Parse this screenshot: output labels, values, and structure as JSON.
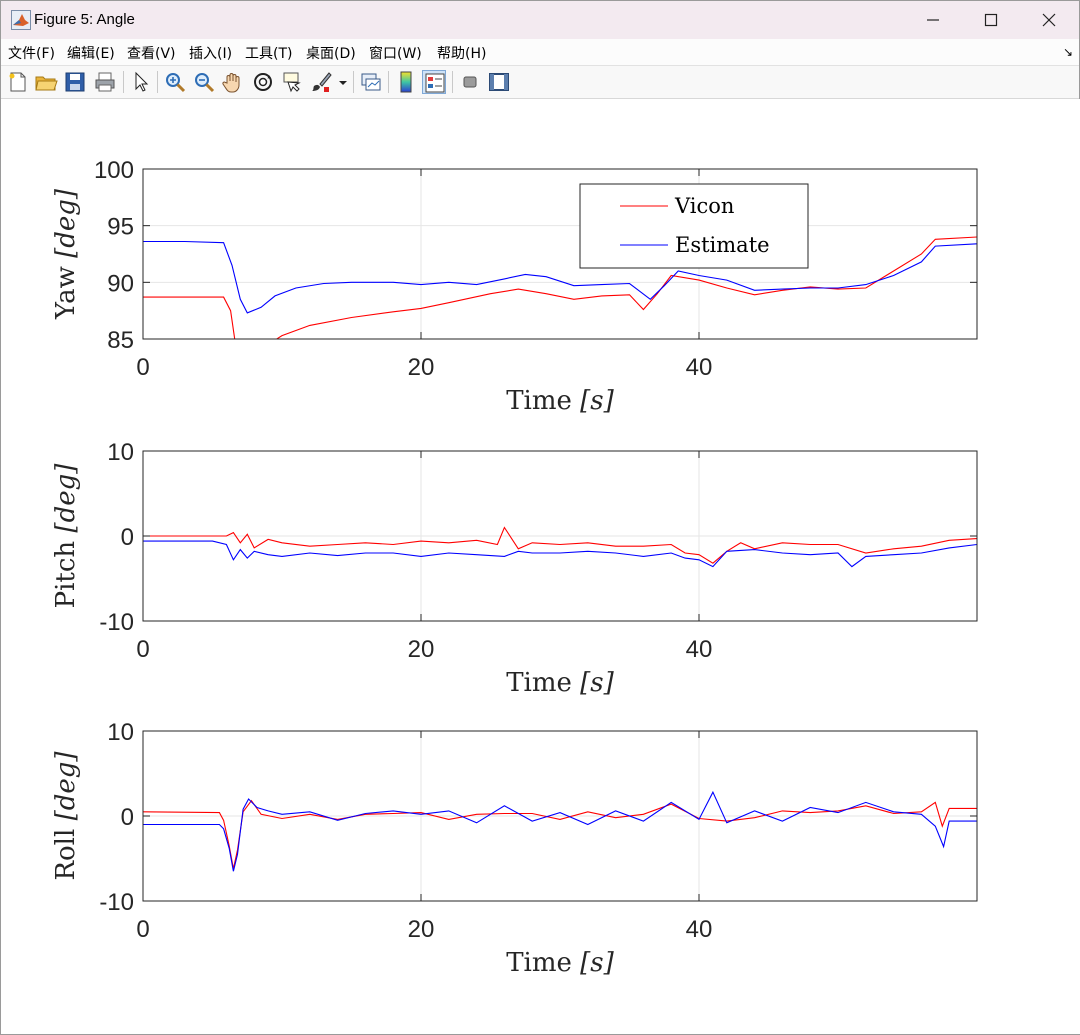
{
  "window": {
    "title": "Figure 5: Angle",
    "controls": {
      "minimize_icon": "minimize-icon",
      "maximize_icon": "maximize-icon",
      "close_icon": "close-icon"
    }
  },
  "menu": {
    "items": [
      "文件(F)",
      "编辑(E)",
      "查看(V)",
      "插入(I)",
      "工具(T)",
      "桌面(D)",
      "窗口(W)",
      "帮助(H)"
    ],
    "overflow_icon": "dock-arrow-icon"
  },
  "toolbar": {
    "icons": [
      "new-figure-icon",
      "open-file-icon",
      "save-icon",
      "print-icon",
      "pointer-icon",
      "zoom-in-icon",
      "zoom-out-icon",
      "pan-hand-icon",
      "rotate-3d-icon",
      "data-cursor-icon",
      "brush-icon",
      "link-plot-icon",
      "colorbar-icon",
      "legend-icon",
      "hide-plot-tools-icon",
      "show-plot-tools-icon"
    ]
  },
  "chart_data": [
    {
      "type": "line",
      "ylabel_text": "Yaw ",
      "ylabel_unit": "[deg]",
      "xlabel_text": "Time ",
      "xlabel_unit": "[s]",
      "xlim": [
        0,
        60
      ],
      "ylim": [
        85,
        100
      ],
      "xticks": [
        "0",
        "20",
        "40"
      ],
      "yticks": [
        "85",
        "90",
        "95",
        "100"
      ],
      "grid": true,
      "legend": {
        "placement": "top-right",
        "entries": [
          "Vicon",
          "Estimate"
        ]
      },
      "series": [
        {
          "name": "Vicon",
          "color": "#ff0000",
          "x": [
            0,
            5.8,
            6.3,
            6.6,
            7.5,
            8.5,
            9.5,
            10,
            12,
            15,
            18,
            20,
            22,
            25,
            27,
            29,
            31,
            33,
            35,
            36,
            37,
            38,
            40,
            42,
            44,
            46,
            48,
            50,
            52,
            54,
            56,
            57,
            60
          ],
          "y": [
            88.7,
            88.7,
            87.5,
            85,
            84.9,
            84.9,
            84.9,
            85.3,
            86.2,
            86.9,
            87.4,
            87.7,
            88.2,
            89.0,
            89.4,
            89.0,
            88.5,
            88.8,
            88.9,
            87.6,
            89.0,
            90.6,
            90.2,
            89.5,
            88.9,
            89.3,
            89.6,
            89.4,
            89.5,
            91.0,
            92.5,
            93.8,
            94.0
          ]
        },
        {
          "name": "Estimate",
          "color": "#0000ff",
          "x": [
            0,
            3,
            5.8,
            6.4,
            7,
            7.5,
            8.5,
            9.5,
            11,
            13,
            15,
            18,
            20,
            22,
            24,
            26,
            27.5,
            29,
            31,
            33,
            35,
            36.5,
            37.5,
            38.5,
            40,
            42,
            44,
            46,
            48,
            50,
            52,
            54,
            56,
            57,
            60
          ],
          "y": [
            93.6,
            93.6,
            93.5,
            91.5,
            88.5,
            87.3,
            87.8,
            88.8,
            89.5,
            89.9,
            90.0,
            90.0,
            89.8,
            90.0,
            89.8,
            90.3,
            90.7,
            90.5,
            89.7,
            89.8,
            89.9,
            88.5,
            89.7,
            91.0,
            90.6,
            90.2,
            89.3,
            89.4,
            89.5,
            89.5,
            89.8,
            90.6,
            91.8,
            93.2,
            93.4
          ]
        }
      ]
    },
    {
      "type": "line",
      "ylabel_text": "Pitch ",
      "ylabel_unit": "[deg]",
      "xlabel_text": "Time ",
      "xlabel_unit": "[s]",
      "xlim": [
        0,
        60
      ],
      "ylim": [
        -10,
        10
      ],
      "xticks": [
        "0",
        "20",
        "40"
      ],
      "yticks": [
        "-10",
        "0",
        "10"
      ],
      "grid": true,
      "series": [
        {
          "name": "Vicon",
          "color": "#ff0000",
          "x": [
            0,
            6,
            6.5,
            7,
            7.5,
            8,
            9,
            10,
            12,
            14,
            16,
            18,
            20,
            22,
            24,
            25.5,
            26,
            27,
            28,
            30,
            32,
            34,
            36,
            38,
            39,
            40,
            41,
            42,
            43,
            44,
            46,
            48,
            50,
            52,
            54,
            56,
            58,
            60
          ],
          "y": [
            0,
            0,
            0.4,
            -0.8,
            0.2,
            -1.4,
            -0.4,
            -0.8,
            -1.2,
            -1.0,
            -0.8,
            -1.0,
            -0.6,
            -0.8,
            -0.5,
            -1.0,
            1.0,
            -1.5,
            -0.8,
            -1.0,
            -0.8,
            -1.2,
            -1.2,
            -1.0,
            -2.0,
            -2.2,
            -3.2,
            -1.8,
            -0.8,
            -1.5,
            -0.8,
            -1.0,
            -1.0,
            -2.0,
            -1.5,
            -1.2,
            -0.5,
            -0.3
          ]
        },
        {
          "name": "Estimate",
          "color": "#0000ff",
          "x": [
            0,
            5,
            6,
            6.5,
            7,
            7.5,
            8,
            9,
            10,
            12,
            14,
            16,
            18,
            20,
            22,
            24,
            26,
            27,
            28,
            30,
            32,
            34,
            36,
            38,
            39,
            40,
            41,
            42,
            44,
            46,
            48,
            50,
            51,
            52,
            54,
            56,
            58,
            60
          ],
          "y": [
            -0.6,
            -0.6,
            -1.0,
            -2.8,
            -1.6,
            -2.6,
            -1.8,
            -2.2,
            -2.4,
            -2.0,
            -2.3,
            -2.0,
            -2.0,
            -2.4,
            -2.0,
            -2.2,
            -2.4,
            -1.8,
            -2.0,
            -2.0,
            -1.8,
            -2.0,
            -2.4,
            -2.0,
            -2.6,
            -2.8,
            -3.6,
            -1.8,
            -1.6,
            -2.0,
            -2.2,
            -2.0,
            -3.6,
            -2.4,
            -2.2,
            -2.0,
            -1.4,
            -1.0
          ]
        }
      ]
    },
    {
      "type": "line",
      "ylabel_text": "Roll ",
      "ylabel_unit": "[deg]",
      "xlabel_text": "Time ",
      "xlabel_unit": "[s]",
      "xlim": [
        0,
        60
      ],
      "ylim": [
        -10,
        10
      ],
      "xticks": [
        "0",
        "20",
        "40"
      ],
      "yticks": [
        "-10",
        "0",
        "10"
      ],
      "grid": true,
      "series": [
        {
          "name": "Vicon",
          "color": "#ff0000",
          "x": [
            0,
            5.5,
            5.8,
            6.2,
            6.5,
            6.8,
            7.2,
            7.8,
            8.5,
            10,
            12,
            14,
            16,
            18,
            20,
            22,
            24,
            26,
            28,
            30,
            32,
            34,
            36,
            38,
            40,
            42,
            44,
            46,
            48,
            50,
            52,
            54,
            56,
            57,
            57.5,
            58,
            60
          ],
          "y": [
            0.5,
            0.4,
            -0.5,
            -3.5,
            -6.2,
            -4.0,
            0.5,
            1.8,
            0.2,
            -0.3,
            0.2,
            -0.4,
            0.2,
            0.3,
            0.4,
            -0.4,
            0.2,
            0.3,
            0.3,
            -0.4,
            0.5,
            -0.2,
            0.2,
            1.4,
            -0.3,
            -0.6,
            -0.2,
            0.6,
            0.4,
            0.6,
            1.2,
            0.3,
            0.5,
            1.6,
            -1.2,
            0.9,
            0.9
          ]
        },
        {
          "name": "Estimate",
          "color": "#0000ff",
          "x": [
            0,
            5.5,
            5.8,
            6.2,
            6.5,
            6.8,
            7.2,
            7.6,
            8.2,
            9,
            10,
            12,
            14,
            16,
            18,
            20,
            22,
            24,
            26,
            28,
            30,
            32,
            34,
            36,
            38,
            40,
            41,
            42,
            44,
            46,
            48,
            50,
            52,
            54,
            56,
            57,
            57.6,
            58,
            60
          ],
          "y": [
            -1.0,
            -1.0,
            -1.5,
            -3.8,
            -6.5,
            -4.5,
            0.8,
            2.0,
            1.0,
            0.6,
            0.2,
            0.5,
            -0.5,
            0.3,
            0.6,
            0.2,
            0.6,
            -0.8,
            1.2,
            -0.6,
            0.4,
            -1.0,
            0.6,
            -0.6,
            1.6,
            -0.4,
            2.8,
            -0.8,
            0.6,
            -0.6,
            1.0,
            0.4,
            1.6,
            0.5,
            0.2,
            -1.2,
            -3.6,
            -0.6,
            -0.6
          ]
        }
      ]
    }
  ]
}
